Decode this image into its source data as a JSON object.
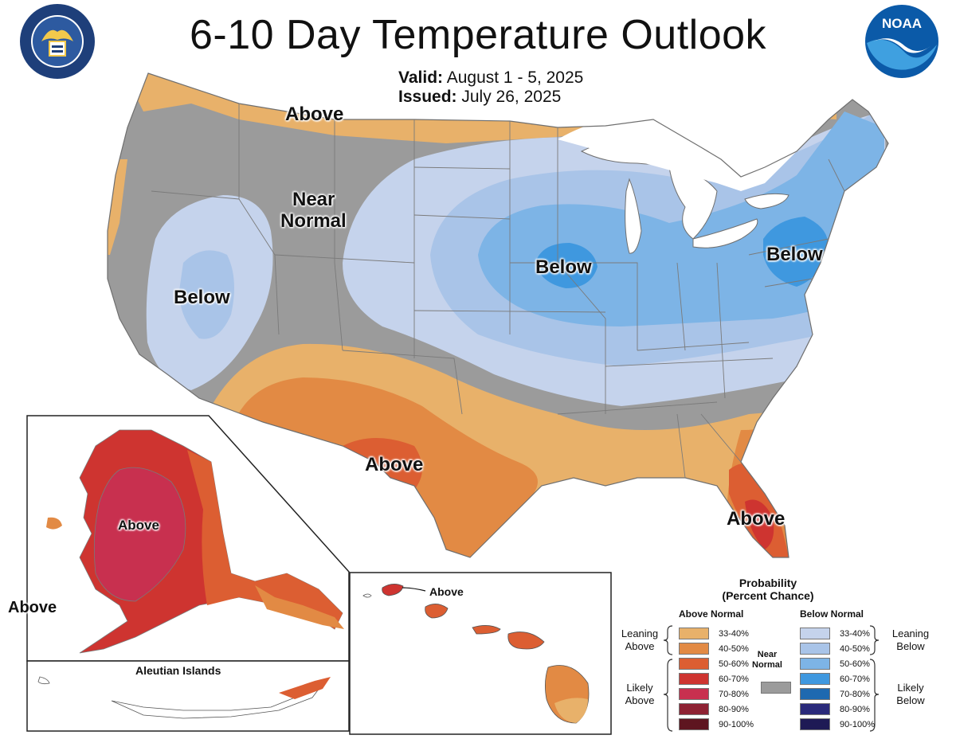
{
  "title": "6-10 Day Temperature Outlook",
  "valid_label": "Valid:",
  "valid_value": "August 1 - 5, 2025",
  "issued_label": "Issued:",
  "issued_value": "July 26, 2025",
  "logos": {
    "commerce_seal": "department-of-commerce-seal",
    "noaa": "NOAA"
  },
  "map_labels": {
    "conus_above_north": "Above",
    "near_normal_line1": "Near",
    "near_normal_line2": "Normal",
    "below_west": "Below",
    "below_midwest": "Below",
    "below_northeast": "Below",
    "above_texas": "Above",
    "above_florida": "Above",
    "alaska_above": "Above",
    "alaska_side_above": "Above",
    "aleutian_title": "Aleutian Islands",
    "hawaii_above": "Above"
  },
  "legend": {
    "title_line1": "Probability",
    "title_line2": "(Percent Chance)",
    "above_header": "Above Normal",
    "below_header": "Below Normal",
    "near_normal_line1": "Near",
    "near_normal_line2": "Normal",
    "leaning_above_line1": "Leaning",
    "leaning_above_line2": "Above",
    "likely_above_line1": "Likely",
    "likely_above_line2": "Above",
    "leaning_below_line1": "Leaning",
    "leaning_below_line2": "Below",
    "likely_below_line1": "Likely",
    "likely_below_line2": "Below",
    "above_bins": [
      {
        "label": "33-40%",
        "color": "#E8B16A"
      },
      {
        "label": "40-50%",
        "color": "#E28A44"
      },
      {
        "label": "50-60%",
        "color": "#DC5E32"
      },
      {
        "label": "60-70%",
        "color": "#CE3430"
      },
      {
        "label": "70-80%",
        "color": "#C8304F"
      },
      {
        "label": "80-90%",
        "color": "#8E2233"
      },
      {
        "label": "90-100%",
        "color": "#5E1520"
      }
    ],
    "below_bins": [
      {
        "label": "33-40%",
        "color": "#C5D3EC"
      },
      {
        "label": "40-50%",
        "color": "#A9C4E8"
      },
      {
        "label": "50-60%",
        "color": "#7DB4E6"
      },
      {
        "label": "60-70%",
        "color": "#3F98DF"
      },
      {
        "label": "70-80%",
        "color": "#1E69B0"
      },
      {
        "label": "80-90%",
        "color": "#2A2A7A"
      },
      {
        "label": "90-100%",
        "color": "#1E1A55"
      }
    ],
    "near_normal_color": "#9B9B9B"
  },
  "colors": {
    "near_normal": "#9B9B9B",
    "lake": "#FFFFFF",
    "state_border": "#6F6F6F"
  }
}
